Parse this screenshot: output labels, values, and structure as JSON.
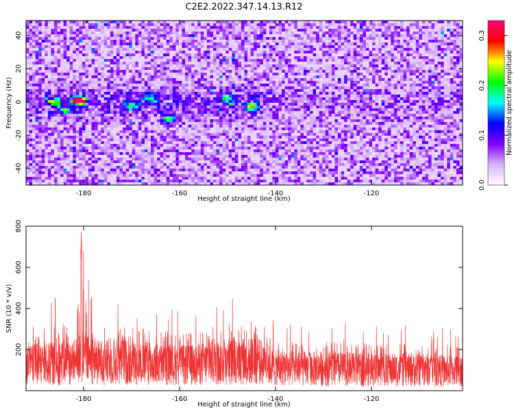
{
  "title": "C2E2.2022.347.14.13.R12",
  "chart_data": [
    {
      "type": "heatmap",
      "xlabel": "Height of straight line (km)",
      "ylabel": "Frequency (Hz)",
      "xlim": [
        -192,
        -101
      ],
      "ylim": [
        -50,
        49
      ],
      "xticks": [
        -180,
        -160,
        -140,
        -120
      ],
      "yticks": [
        -40,
        -20,
        0,
        20,
        40
      ],
      "colorbar": {
        "label": "Normalized spectral amplitude",
        "range": [
          0.0,
          0.33
        ],
        "ticks": [
          0.0,
          0.1,
          0.2,
          0.3
        ],
        "colors": [
          "#ffffff",
          "#d9b3ff",
          "#8000ff",
          "#0000ff",
          "#00ffff",
          "#00ff00",
          "#ffff00",
          "#ff0000",
          "#ff0080"
        ]
      },
      "hotspots": [
        {
          "x": -181,
          "y": 1,
          "value": 0.3
        },
        {
          "x": -186,
          "y": 0,
          "value": 0.15
        },
        {
          "x": -170,
          "y": -2,
          "value": 0.14
        },
        {
          "x": -166,
          "y": 3,
          "value": 0.12
        },
        {
          "x": -145,
          "y": -3,
          "value": 0.18
        },
        {
          "x": -150,
          "y": 2,
          "value": 0.13
        },
        {
          "x": -162,
          "y": -10,
          "value": 0.16
        },
        {
          "x": -184,
          "y": -5,
          "value": 0.12
        }
      ]
    },
    {
      "type": "line",
      "xlabel": "Height of straight line (km)",
      "ylabel": "SNR (10 * v/v)",
      "xlim": [
        -192,
        -101
      ],
      "ylim": [
        0,
        800
      ],
      "xticks": [
        -180,
        -160,
        -140,
        -120
      ],
      "yticks": [
        200,
        400,
        600,
        800
      ],
      "color": "#ee3333",
      "profile": [
        {
          "x": -192,
          "mean": 160,
          "peak": 290
        },
        {
          "x": -188,
          "mean": 165,
          "peak": 460
        },
        {
          "x": -185,
          "mean": 170,
          "peak": 470
        },
        {
          "x": -182,
          "mean": 175,
          "peak": 420
        },
        {
          "x": -180.5,
          "mean": 210,
          "peak": 800
        },
        {
          "x": -178,
          "mean": 180,
          "peak": 430
        },
        {
          "x": -175,
          "mean": 175,
          "peak": 440
        },
        {
          "x": -172,
          "mean": 180,
          "peak": 450
        },
        {
          "x": -168,
          "mean": 170,
          "peak": 420
        },
        {
          "x": -165,
          "mean": 165,
          "peak": 430
        },
        {
          "x": -162,
          "mean": 160,
          "peak": 400
        },
        {
          "x": -158,
          "mean": 160,
          "peak": 380
        },
        {
          "x": -155,
          "mean": 170,
          "peak": 410
        },
        {
          "x": -152,
          "mean": 175,
          "peak": 440
        },
        {
          "x": -148,
          "mean": 185,
          "peak": 470
        },
        {
          "x": -145,
          "mean": 185,
          "peak": 490
        },
        {
          "x": -143,
          "mean": 180,
          "peak": 470
        },
        {
          "x": -140,
          "mean": 140,
          "peak": 330
        },
        {
          "x": -135,
          "mean": 140,
          "peak": 320
        },
        {
          "x": -130,
          "mean": 135,
          "peak": 330
        },
        {
          "x": -125,
          "mean": 135,
          "peak": 350
        },
        {
          "x": -120,
          "mean": 130,
          "peak": 310
        },
        {
          "x": -115,
          "mean": 130,
          "peak": 330
        },
        {
          "x": -110,
          "mean": 130,
          "peak": 300
        },
        {
          "x": -105,
          "mean": 125,
          "peak": 310
        },
        {
          "x": -101,
          "mean": 125,
          "peak": 290
        }
      ]
    }
  ]
}
